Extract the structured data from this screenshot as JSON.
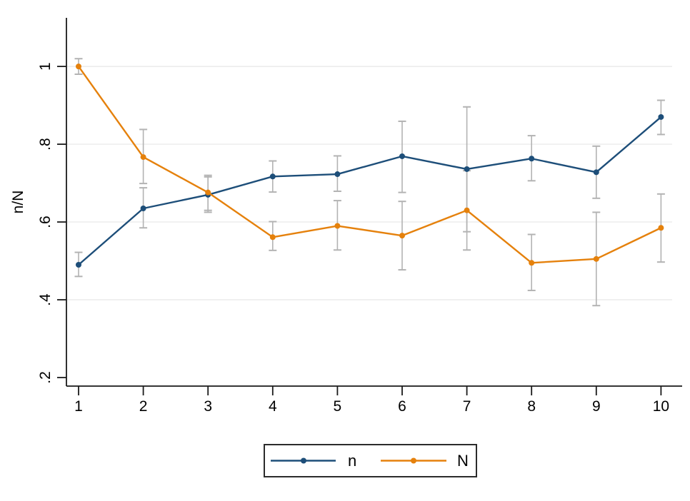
{
  "chart_data": {
    "type": "line",
    "title": "",
    "xlabel": "",
    "ylabel": "n/N",
    "x": [
      1,
      2,
      3,
      4,
      5,
      6,
      7,
      8,
      9,
      10
    ],
    "x_tick_labels": [
      "1",
      "2",
      "3",
      "4",
      "5",
      "6",
      "7",
      "8",
      "9",
      "10"
    ],
    "y_ticks": [
      0.2,
      0.4,
      0.6,
      0.8,
      1.0
    ],
    "y_tick_labels": [
      ".2",
      ".4",
      ".6",
      ".8",
      "1"
    ],
    "ylim": [
      0.178,
      1.125
    ],
    "grid": "horizontal",
    "grid_at": [
      0.4,
      0.6,
      0.8,
      1.0
    ],
    "legend_position": "bottom-center",
    "error_bars": true,
    "series": [
      {
        "name": "n",
        "color": "#1d4e79",
        "values": [
          0.49,
          0.635,
          0.67,
          0.717,
          0.723,
          0.769,
          0.736,
          0.763,
          0.728,
          0.87
        ],
        "ci_low": [
          0.46,
          0.585,
          0.625,
          0.677,
          0.679,
          0.676,
          0.575,
          0.706,
          0.661,
          0.825
        ],
        "ci_high": [
          0.522,
          0.688,
          0.716,
          0.757,
          0.77,
          0.859,
          0.896,
          0.822,
          0.795,
          0.913
        ]
      },
      {
        "name": "N",
        "color": "#e5810c",
        "values": [
          1.0,
          0.767,
          0.676,
          0.561,
          0.59,
          0.565,
          0.63,
          0.495,
          0.505,
          0.585
        ],
        "ci_low": [
          0.98,
          0.699,
          0.63,
          0.527,
          0.528,
          0.477,
          0.528,
          0.424,
          0.385,
          0.497
        ],
        "ci_high": [
          1.02,
          0.838,
          0.72,
          0.601,
          0.655,
          0.653,
          0.732,
          0.568,
          0.625,
          0.672
        ]
      }
    ],
    "colors": {
      "axis": "#1a1a1a",
      "grid": "#e6e6e6",
      "error_bar": "#b3b3b3",
      "legend_border": "#2b2b2b",
      "background": "#ffffff"
    }
  }
}
